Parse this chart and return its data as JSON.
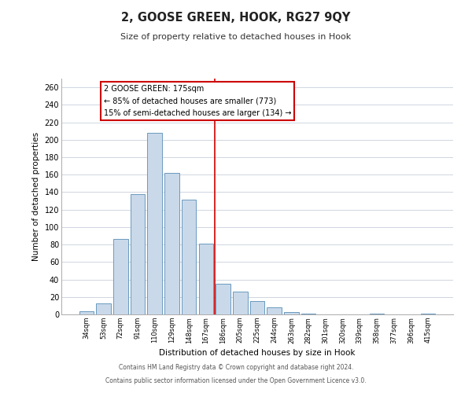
{
  "title": "2, GOOSE GREEN, HOOK, RG27 9QY",
  "subtitle": "Size of property relative to detached houses in Hook",
  "xlabel": "Distribution of detached houses by size in Hook",
  "ylabel": "Number of detached properties",
  "bar_labels": [
    "34sqm",
    "53sqm",
    "72sqm",
    "91sqm",
    "110sqm",
    "129sqm",
    "148sqm",
    "167sqm",
    "186sqm",
    "205sqm",
    "225sqm",
    "244sqm",
    "263sqm",
    "282sqm",
    "301sqm",
    "320sqm",
    "339sqm",
    "358sqm",
    "377sqm",
    "396sqm",
    "415sqm"
  ],
  "bar_values": [
    4,
    13,
    86,
    138,
    208,
    162,
    131,
    81,
    35,
    26,
    15,
    8,
    3,
    1,
    0,
    0,
    0,
    1,
    0,
    0,
    1
  ],
  "bar_color": "#c9d9ea",
  "bar_edge_color": "#6a9abf",
  "vline_x": 7.5,
  "vline_color": "#cc0000",
  "annotation_lines": [
    "2 GOOSE GREEN: 175sqm",
    "← 85% of detached houses are smaller (773)",
    "15% of semi-detached houses are larger (134) →"
  ],
  "box_edge_color": "#cc0000",
  "ylim": [
    0,
    270
  ],
  "yticks": [
    0,
    20,
    40,
    60,
    80,
    100,
    120,
    140,
    160,
    180,
    200,
    220,
    240,
    260
  ],
  "footer_lines": [
    "Contains HM Land Registry data © Crown copyright and database right 2024.",
    "Contains public sector information licensed under the Open Government Licence v3.0."
  ],
  "background_color": "#ffffff",
  "grid_color": "#c8d0da"
}
